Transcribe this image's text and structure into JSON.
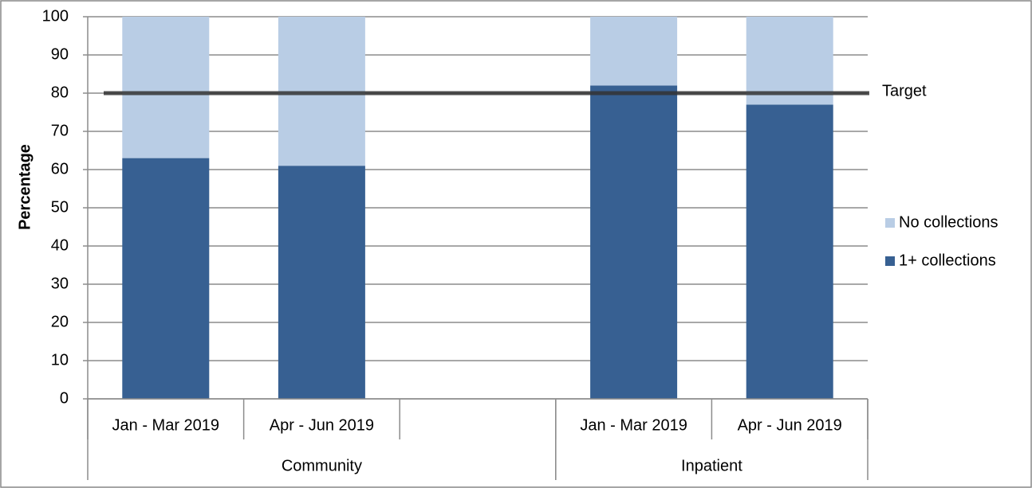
{
  "chart_data": {
    "type": "bar",
    "stacked": true,
    "y_label": "Percentage",
    "categories": [
      "Jan - Mar 2019",
      "Apr - Jun 2019",
      null,
      "Jan - Mar 2019",
      "Apr - Jun 2019"
    ],
    "groups": [
      {
        "label": "Community",
        "count": 3
      },
      {
        "label": "Inpatient",
        "count": 2
      }
    ],
    "series": [
      {
        "name": "1+ collections",
        "color": "#376092",
        "values": [
          63,
          61,
          null,
          82,
          77
        ]
      },
      {
        "name": "No collections",
        "color": "#b9cde5",
        "values": [
          37,
          39,
          null,
          18,
          23
        ]
      }
    ],
    "target": {
      "label": "Target",
      "value": 80,
      "color": "#333333"
    },
    "ylim": [
      0,
      100
    ],
    "yticks": [
      0,
      10,
      20,
      30,
      40,
      50,
      60,
      70,
      80,
      90,
      100
    ],
    "grid": true
  }
}
